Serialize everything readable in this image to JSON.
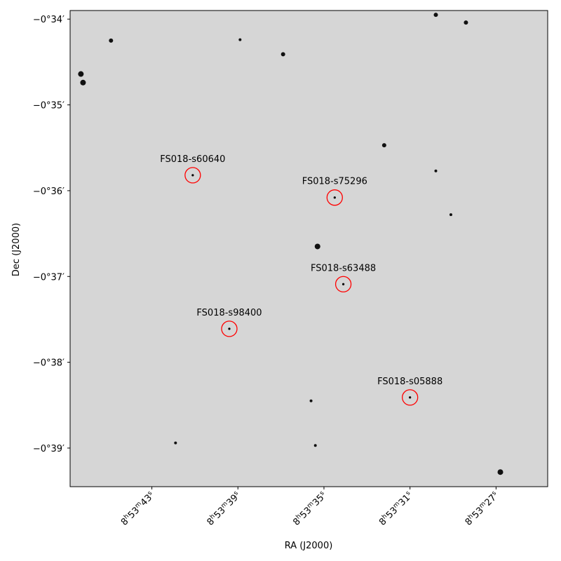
{
  "chart_data": {
    "type": "scatter",
    "title": "",
    "xlabel": "RA (J2000)",
    "ylabel": "Dec (J2000)",
    "x_unit": "seconds of RA past 8h53m",
    "y_unit": "arcminutes below 0°",
    "xlim": [
      46.8,
      24.6
    ],
    "ylim": [
      -33.9,
      -39.45
    ],
    "grid": false,
    "background": "grayscale sky image",
    "x_ticks": [
      {
        "value": 43,
        "label": [
          "8",
          "h",
          "53",
          "m",
          "43",
          "s"
        ]
      },
      {
        "value": 39,
        "label": [
          "8",
          "h",
          "53",
          "m",
          "39",
          "s"
        ]
      },
      {
        "value": 35,
        "label": [
          "8",
          "h",
          "53",
          "m",
          "35",
          "s"
        ]
      },
      {
        "value": 31,
        "label": [
          "8",
          "h",
          "53",
          "m",
          "31",
          "s"
        ]
      },
      {
        "value": 27,
        "label": [
          "8",
          "h",
          "53",
          "m",
          "27",
          "s"
        ]
      }
    ],
    "y_ticks": [
      {
        "value": -34,
        "label": "−0°34′"
      },
      {
        "value": -35,
        "label": "−0°35′"
      },
      {
        "value": -36,
        "label": "−0°36′"
      },
      {
        "value": -37,
        "label": "−0°37′"
      },
      {
        "value": -38,
        "label": "−0°38′"
      },
      {
        "value": -39,
        "label": "−0°39′"
      }
    ],
    "marker_color": "#ff0000",
    "series": [
      {
        "points": [
          {
            "name": "FS018-s60640",
            "ra": 41.1,
            "dec": -35.82
          },
          {
            "name": "FS018-s75296",
            "ra": 34.5,
            "dec": -36.08
          },
          {
            "name": "FS018-s63488",
            "ra": 34.1,
            "dec": -37.09
          },
          {
            "name": "FS018-s98400",
            "ra": 39.4,
            "dec": -37.61
          },
          {
            "name": "FS018-s05888",
            "ra": 31.0,
            "dec": -38.41
          }
        ]
      }
    ],
    "field_stars": [
      {
        "ra": 46.3,
        "dec": -34.64,
        "mag": 3
      },
      {
        "ra": 46.2,
        "dec": -34.74,
        "mag": 3
      },
      {
        "ra": 44.9,
        "dec": -34.25,
        "mag": 2
      },
      {
        "ra": 38.9,
        "dec": -34.24,
        "mag": 1
      },
      {
        "ra": 36.9,
        "dec": -34.41,
        "mag": 2
      },
      {
        "ra": 32.2,
        "dec": -35.47,
        "mag": 2
      },
      {
        "ra": 29.8,
        "dec": -33.95,
        "mag": 2
      },
      {
        "ra": 28.4,
        "dec": -34.04,
        "mag": 2
      },
      {
        "ra": 29.8,
        "dec": -35.77,
        "mag": 1
      },
      {
        "ra": 29.1,
        "dec": -36.28,
        "mag": 1
      },
      {
        "ra": 35.3,
        "dec": -36.65,
        "mag": 3
      },
      {
        "ra": 35.6,
        "dec": -38.45,
        "mag": 1
      },
      {
        "ra": 35.4,
        "dec": -38.97,
        "mag": 1
      },
      {
        "ra": 41.9,
        "dec": -38.94,
        "mag": 1
      },
      {
        "ra": 26.8,
        "dec": -39.28,
        "mag": 3
      }
    ]
  }
}
